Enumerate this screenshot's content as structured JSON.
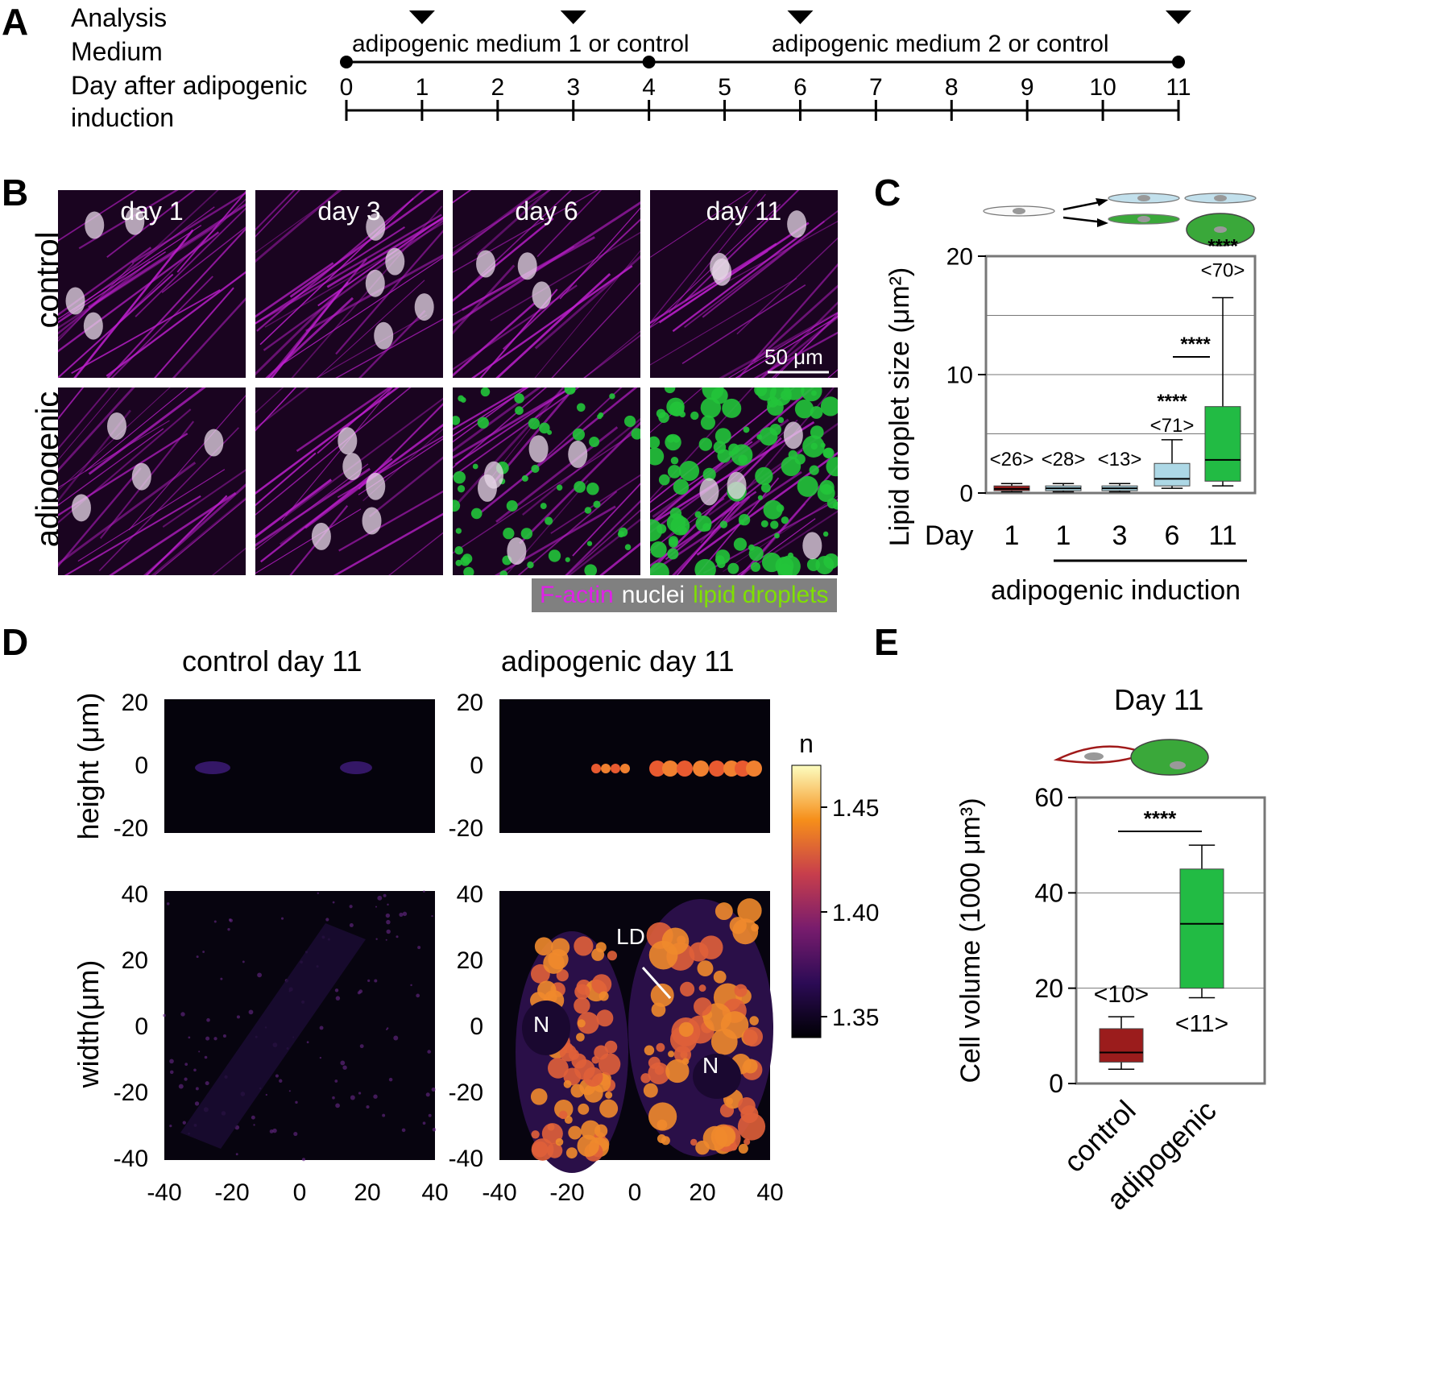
{
  "panels": {
    "A": "A",
    "B": "B",
    "C": "C",
    "D": "D",
    "E": "E"
  },
  "timeline": {
    "row_labels": {
      "analysis": "Analysis",
      "medium": "Medium",
      "day_line1": "Day after adipogenic",
      "day_line2": "induction"
    },
    "medium_1": "adipogenic medium 1 or control",
    "medium_2": "adipogenic medium 2 or control",
    "days": [
      "0",
      "1",
      "2",
      "3",
      "4",
      "5",
      "6",
      "7",
      "8",
      "9",
      "10",
      "11"
    ],
    "analysis_days": [
      1,
      3,
      6,
      11
    ],
    "medium_change_days": [
      0,
      4,
      11
    ]
  },
  "panel_b": {
    "row_labels": {
      "control": "control",
      "adipogenic": "adipogenic"
    },
    "columns": [
      "day 1",
      "day 3",
      "day 6",
      "day 11"
    ],
    "scale_bar": "50 μm",
    "legend": {
      "factin": "F-actin",
      "nuclei": "nuclei",
      "lipid": "lipid droplets"
    },
    "colors": {
      "factin": "#c020d0",
      "nuclei": "#ffffff",
      "lipid": "#7fe000",
      "droplet": "#22c43a"
    }
  },
  "panel_c": {
    "ylabel": "Lipid droplet size (μm²)",
    "x_axis_title": "Day",
    "bracket_label": "adipogenic induction",
    "chart_data": {
      "type": "box",
      "ylim": [
        0,
        20
      ],
      "yticks": [
        0,
        10,
        20
      ],
      "grid_y": [
        5,
        10,
        15
      ],
      "categories": [
        "1",
        "1",
        "3",
        "6",
        "11"
      ],
      "groups": [
        "control",
        "adipogenic",
        "adipogenic",
        "adipogenic",
        "adipogenic"
      ],
      "boxes": [
        {
          "day": "1",
          "q1": 0.2,
          "median": 0.35,
          "q3": 0.6,
          "whisker_low": 0.1,
          "whisker_high": 0.8,
          "n": "<26>",
          "color": "#9b1c1c",
          "sig": ""
        },
        {
          "day": "1",
          "q1": 0.2,
          "median": 0.4,
          "q3": 0.6,
          "whisker_low": 0.1,
          "whisker_high": 0.8,
          "n": "<28>",
          "color": "#add8e6",
          "sig": ""
        },
        {
          "day": "3",
          "q1": 0.2,
          "median": 0.4,
          "q3": 0.6,
          "whisker_low": 0.1,
          "whisker_high": 0.8,
          "n": "<13>",
          "color": "#add8e6",
          "sig": ""
        },
        {
          "day": "6",
          "q1": 0.6,
          "median": 1.2,
          "q3": 2.5,
          "whisker_low": 0.4,
          "whisker_high": 4.5,
          "n": "<71>",
          "color": "#add8e6",
          "sig": "****"
        },
        {
          "day": "11",
          "q1": 1.0,
          "median": 2.8,
          "q3": 7.3,
          "whisker_low": 0.6,
          "whisker_high": 16.5,
          "n": "<70>",
          "color": "#22bb44",
          "sig": "****"
        }
      ],
      "comparison": {
        "between": [
          "6",
          "11"
        ],
        "label": "****"
      }
    }
  },
  "panel_d": {
    "titles": {
      "control": "control day 11",
      "adipogenic": "adipogenic day 11"
    },
    "ylabel_top": "height (μm)",
    "ylabel_bottom": "width(μm)",
    "top_yticks": [
      "20",
      "0",
      "-20"
    ],
    "bottom_yticks": [
      "40",
      "20",
      "0",
      "-20",
      "-40"
    ],
    "xticks": [
      "-40",
      "-20",
      "0",
      "20",
      "40"
    ],
    "annotations": {
      "ld": "LD",
      "n1": "N",
      "n2": "N"
    },
    "colorbar": {
      "label": "n",
      "ticks": [
        "1.45",
        "1.40",
        "1.35"
      ],
      "range": [
        1.34,
        1.47
      ]
    }
  },
  "panel_e": {
    "title": "Day 11",
    "ylabel": "Cell volume  (1000 μm³)",
    "chart_data": {
      "type": "box",
      "ylim": [
        0,
        60
      ],
      "yticks": [
        0,
        20,
        40,
        60
      ],
      "grid_y": [
        20,
        40
      ],
      "categories": [
        "control",
        "adipogenic"
      ],
      "boxes": [
        {
          "name": "control",
          "q1": 4.5,
          "median": 6.5,
          "q3": 11.5,
          "whisker_low": 3.0,
          "whisker_high": 14.0,
          "n": "<10>",
          "color": "#9b1c1c"
        },
        {
          "name": "adipogenic",
          "q1": 20.0,
          "median": 33.5,
          "q3": 45.0,
          "whisker_low": 18.0,
          "whisker_high": 50.0,
          "n": "<11>",
          "color": "#22bb44"
        }
      ],
      "comparison": {
        "between": [
          "control",
          "adipogenic"
        ],
        "label": "****"
      }
    }
  }
}
